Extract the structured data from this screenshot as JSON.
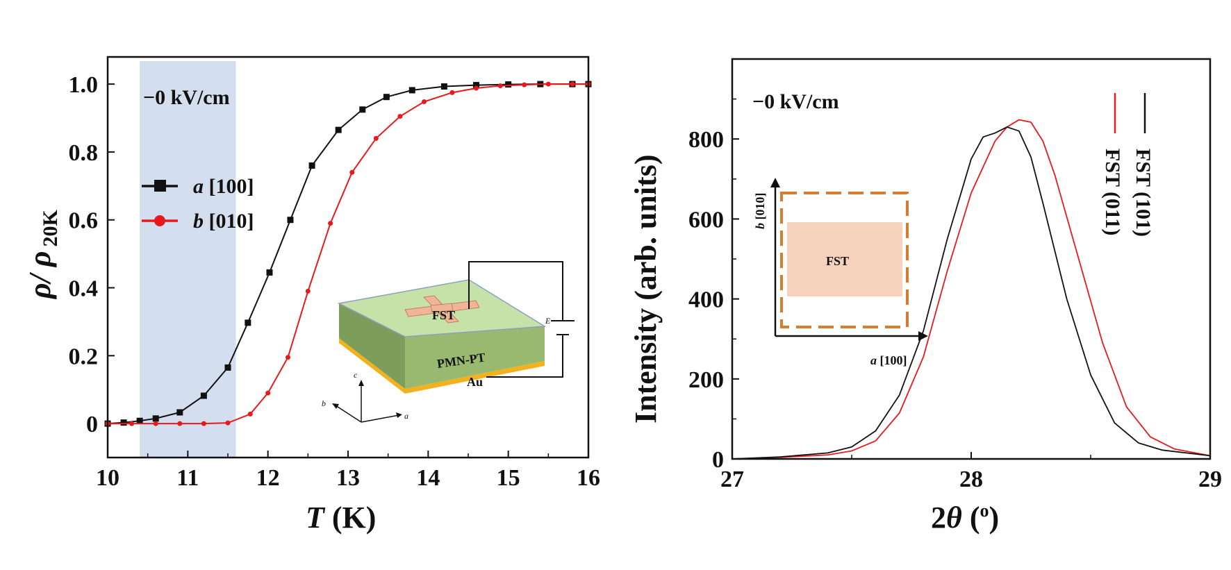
{
  "chart_data": [
    {
      "type": "line",
      "xlabel_italic": "T",
      "xlabel_rest": " (K)",
      "ylabel_main": "ρ/ ρ",
      "ylabel_sub": "20K",
      "xlim": [
        10,
        16
      ],
      "ylim": [
        -0.1,
        1.08
      ],
      "xticks": [
        "10",
        "11",
        "12",
        "13",
        "14",
        "15",
        "16"
      ],
      "yticks": [
        "0",
        "0.2",
        "0.4",
        "0.6",
        "0.8",
        "1.0"
      ],
      "annotation": "−0 kV/cm",
      "shaded_band": [
        10.4,
        11.6
      ],
      "shade_color": "#d3deef",
      "legend_placement": "upper-left",
      "series": [
        {
          "name": "[100]",
          "name_italic": "a",
          "color": "#111111",
          "marker": "square",
          "x": [
            10.0,
            10.2,
            10.4,
            10.6,
            10.9,
            11.2,
            11.5,
            11.75,
            12.02,
            12.28,
            12.55,
            12.88,
            13.18,
            13.48,
            13.8,
            14.2,
            14.6,
            15.0,
            15.4,
            15.8,
            16.0
          ],
          "y": [
            0.0,
            0.003,
            0.008,
            0.015,
            0.033,
            0.082,
            0.165,
            0.297,
            0.445,
            0.6,
            0.76,
            0.865,
            0.925,
            0.962,
            0.982,
            0.993,
            0.997,
            0.999,
            1.0,
            1.0,
            1.0
          ]
        },
        {
          "name": "[010]",
          "name_italic": "b",
          "color": "#e8191c",
          "marker": "circle",
          "x": [
            10.0,
            10.3,
            10.6,
            10.9,
            11.2,
            11.5,
            11.78,
            12.0,
            12.25,
            12.5,
            12.78,
            13.05,
            13.35,
            13.65,
            13.95,
            14.3,
            14.6,
            14.9,
            15.2,
            15.5,
            15.8,
            16.0
          ],
          "y": [
            0.0,
            0.0,
            0.0,
            0.0,
            0.0,
            0.002,
            0.028,
            0.09,
            0.195,
            0.39,
            0.59,
            0.74,
            0.84,
            0.905,
            0.948,
            0.975,
            0.988,
            0.995,
            0.998,
            1.0,
            1.0,
            1.0
          ]
        }
      ],
      "inset": {
        "fst_label": "FST",
        "pmnpt_label": "PMN-PT",
        "au_label": "Au",
        "e_label": "E",
        "axis_a": "a",
        "axis_b": "b",
        "axis_c": "c",
        "top_color": "#c6e2a8",
        "side_color": "#7d9e5b",
        "gold_color": "#f2b21e",
        "fst_color": "#f0b596"
      }
    },
    {
      "type": "line",
      "xlabel_main": "2",
      "xlabel_italic": "θ",
      "xlabel_rest": " (",
      "xlabel_sup": "o",
      "xlabel_close": ")",
      "ylabel": "Intensity (arb. units)",
      "xlim": [
        27,
        29
      ],
      "ylim": [
        0,
        1000
      ],
      "xticks": [
        "27",
        "28",
        "29"
      ],
      "yticks": [
        "0",
        "200",
        "400",
        "600",
        "800"
      ],
      "annotation": "−0 kV/cm",
      "legend_placement": "upper-right",
      "series": [
        {
          "name": "FST (101)",
          "color": "#111111",
          "x": [
            27.0,
            27.2,
            27.4,
            27.5,
            27.6,
            27.7,
            27.8,
            27.9,
            28.0,
            28.05,
            28.1,
            28.15,
            28.2,
            28.25,
            28.3,
            28.4,
            28.5,
            28.6,
            28.7,
            28.8,
            29.0
          ],
          "y": [
            0,
            5,
            15,
            30,
            70,
            160,
            320,
            550,
            750,
            805,
            815,
            830,
            820,
            755,
            640,
            400,
            210,
            90,
            40,
            22,
            8
          ]
        },
        {
          "name": "FST (011)",
          "color": "#e8191c",
          "x": [
            27.0,
            27.2,
            27.4,
            27.5,
            27.6,
            27.7,
            27.8,
            27.9,
            28.0,
            28.1,
            28.15,
            28.2,
            28.25,
            28.3,
            28.35,
            28.45,
            28.55,
            28.65,
            28.75,
            28.85,
            29.0
          ],
          "y": [
            0,
            4,
            10,
            20,
            45,
            115,
            255,
            470,
            665,
            795,
            830,
            848,
            842,
            795,
            710,
            500,
            290,
            130,
            55,
            25,
            8
          ]
        }
      ],
      "inset": {
        "fst_label": "FST",
        "xaxis_italic": "a",
        "xaxis_rest": " [100]",
        "yaxis_italic": "b",
        "yaxis_rest": " [010]",
        "box_color": "#d57f2e",
        "fill_color": "#f7d2bd"
      }
    }
  ]
}
